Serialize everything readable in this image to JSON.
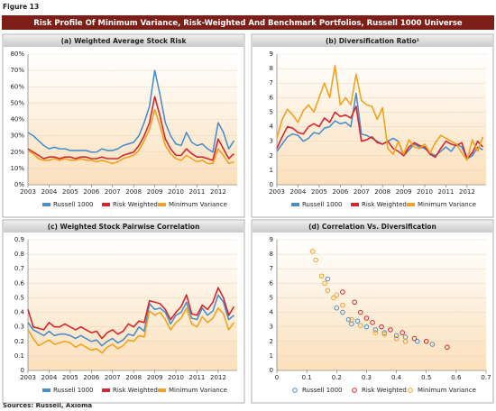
{
  "figure_label": "Figure 13",
  "title": "Risk Profile Of Minimum Variance, Risk-Weighted And Benchmark Portfolios, Russell 1000 Universe",
  "source": "Sources: Russell, Axioma",
  "chart_data": [
    {
      "type": "line",
      "title": "(a) Weighted Average Stock Risk",
      "legend": "bottom",
      "grid": true,
      "x": [
        2003,
        2003.25,
        2003.5,
        2003.75,
        2004,
        2004.25,
        2004.5,
        2004.75,
        2005,
        2005.25,
        2005.5,
        2005.75,
        2006,
        2006.25,
        2006.5,
        2006.75,
        2007,
        2007.25,
        2007.5,
        2007.75,
        2008,
        2008.25,
        2008.5,
        2008.75,
        2009,
        2009.25,
        2009.5,
        2009.75,
        2010,
        2010.25,
        2010.5,
        2010.75,
        2011,
        2011.25,
        2011.5,
        2011.75,
        2012,
        2012.25,
        2012.5,
        2012.75
      ],
      "xlim": [
        2003,
        2012.9
      ],
      "xticks": [
        2003,
        2004,
        2005,
        2006,
        2007,
        2008,
        2009,
        2010,
        2011,
        2012
      ],
      "ylim": [
        0,
        80
      ],
      "yticks": [
        {
          "value": 0,
          "label": "0%"
        },
        {
          "value": 10,
          "label": "10%"
        },
        {
          "value": 20,
          "label": "20%"
        },
        {
          "value": 30,
          "label": "30%"
        },
        {
          "value": 40,
          "label": "40%"
        },
        {
          "value": 50,
          "label": "50%"
        },
        {
          "value": 60,
          "label": "60%"
        },
        {
          "value": 70,
          "label": "70%"
        },
        {
          "value": 80,
          "label": "80%"
        }
      ],
      "series": [
        {
          "name": "Russell 1000",
          "color": "#4a8fcb",
          "values": [
            32,
            30,
            27,
            24,
            22,
            23,
            22,
            22,
            21,
            21,
            21,
            21,
            20,
            20,
            22,
            21,
            21,
            22,
            24,
            25,
            26,
            30,
            38,
            48,
            70,
            55,
            38,
            30,
            25,
            24,
            32,
            26,
            24,
            25,
            22,
            20,
            38,
            32,
            22,
            27
          ]
        },
        {
          "name": "Risk Weighted",
          "color": "#d7262c",
          "values": [
            22,
            20,
            18,
            16,
            17,
            17,
            16,
            17,
            17,
            16,
            17,
            17,
            16,
            16,
            17,
            16,
            16,
            16,
            18,
            19,
            20,
            24,
            30,
            38,
            54,
            42,
            28,
            22,
            18,
            18,
            22,
            19,
            17,
            17,
            16,
            15,
            28,
            22,
            16,
            19
          ]
        },
        {
          "name": "Minimum Variance",
          "color": "#f2a21e",
          "values": [
            21,
            19,
            16,
            15,
            15,
            16,
            15,
            16,
            15,
            15,
            16,
            15,
            15,
            14,
            15,
            14,
            13,
            14,
            16,
            17,
            18,
            21,
            27,
            34,
            46,
            36,
            24,
            19,
            16,
            15,
            18,
            16,
            14,
            15,
            13,
            13,
            22,
            18,
            13,
            14
          ]
        }
      ]
    },
    {
      "type": "line",
      "title": "(b) Diversification Ratio¹",
      "legend": "bottom",
      "grid": true,
      "x": [
        2003,
        2003.25,
        2003.5,
        2003.75,
        2004,
        2004.25,
        2004.5,
        2004.75,
        2005,
        2005.25,
        2005.5,
        2005.75,
        2006,
        2006.25,
        2006.5,
        2006.75,
        2007,
        2007.25,
        2007.5,
        2007.75,
        2008,
        2008.25,
        2008.5,
        2008.75,
        2009,
        2009.25,
        2009.5,
        2009.75,
        2010,
        2010.25,
        2010.5,
        2010.75,
        2011,
        2011.25,
        2011.5,
        2011.75,
        2012,
        2012.25,
        2012.5,
        2012.75
      ],
      "xlim": [
        2003,
        2012.9
      ],
      "xticks": [
        2003,
        2004,
        2005,
        2006,
        2007,
        2008,
        2009,
        2010,
        2011,
        2012
      ],
      "ylim": [
        0,
        9
      ],
      "yticks": [
        0,
        1,
        2,
        3,
        4,
        5,
        6,
        7,
        8,
        9
      ],
      "series": [
        {
          "name": "Russell 1000",
          "color": "#4a8fcb",
          "values": [
            2.3,
            2.8,
            3.3,
            3.5,
            3.4,
            3.0,
            3.2,
            3.6,
            3.5,
            3.9,
            4.0,
            4.4,
            4.2,
            4.3,
            4.0,
            6.3,
            3.5,
            3.4,
            3.2,
            3.0,
            2.8,
            3.0,
            3.2,
            3.0,
            2.0,
            2.4,
            2.8,
            2.6,
            2.5,
            2.2,
            2.0,
            2.3,
            2.6,
            2.3,
            2.8,
            2.6,
            1.8,
            2.0,
            2.6,
            2.4
          ]
        },
        {
          "name": "Risk Weighted",
          "color": "#d7262c",
          "values": [
            2.5,
            3.3,
            4.0,
            3.9,
            3.6,
            3.5,
            4.0,
            4.2,
            4.0,
            4.6,
            4.3,
            5.0,
            4.7,
            4.8,
            4.6,
            5.4,
            3.0,
            3.1,
            3.3,
            2.9,
            2.8,
            3.0,
            2.5,
            2.3,
            2.0,
            2.6,
            2.9,
            2.7,
            2.6,
            2.1,
            1.9,
            2.5,
            3.0,
            2.8,
            2.7,
            2.9,
            1.8,
            2.2,
            3.0,
            2.6
          ]
        },
        {
          "name": "Minimum Variance",
          "color": "#f2a21e",
          "values": [
            3.2,
            4.5,
            5.2,
            4.8,
            4.3,
            5.1,
            5.5,
            5.0,
            6.0,
            7.0,
            6.0,
            8.2,
            5.5,
            6.0,
            5.5,
            7.6,
            5.8,
            5.5,
            5.4,
            4.5,
            5.3,
            2.5,
            2.1,
            3.0,
            2.1,
            3.1,
            2.6,
            2.5,
            2.8,
            2.2,
            2.9,
            3.4,
            3.2,
            3.0,
            2.8,
            2.2,
            1.7,
            3.1,
            2.3,
            3.3
          ]
        }
      ]
    },
    {
      "type": "line",
      "title": "(c) Weighted Stock Pairwise Correlation",
      "legend": "bottom",
      "grid": true,
      "x": [
        2003,
        2003.25,
        2003.5,
        2003.75,
        2004,
        2004.25,
        2004.5,
        2004.75,
        2005,
        2005.25,
        2005.5,
        2005.75,
        2006,
        2006.25,
        2006.5,
        2006.75,
        2007,
        2007.25,
        2007.5,
        2007.75,
        2008,
        2008.25,
        2008.5,
        2008.75,
        2009,
        2009.25,
        2009.5,
        2009.75,
        2010,
        2010.25,
        2010.5,
        2010.75,
        2011,
        2011.25,
        2011.5,
        2011.75,
        2012,
        2012.25,
        2012.5,
        2012.75
      ],
      "xlim": [
        2003,
        2012.9
      ],
      "xticks": [
        2003,
        2004,
        2005,
        2006,
        2007,
        2008,
        2009,
        2010,
        2011,
        2012
      ],
      "ylim": [
        0,
        0.9
      ],
      "yticks": [
        0,
        0.1,
        0.2,
        0.3,
        0.4,
        0.5,
        0.6,
        0.7,
        0.8,
        0.9
      ],
      "series": [
        {
          "name": "Russell 1000",
          "color": "#4a8fcb",
          "values": [
            0.33,
            0.28,
            0.26,
            0.24,
            0.27,
            0.24,
            0.25,
            0.25,
            0.24,
            0.22,
            0.24,
            0.22,
            0.2,
            0.21,
            0.17,
            0.2,
            0.22,
            0.19,
            0.21,
            0.25,
            0.24,
            0.3,
            0.27,
            0.46,
            0.42,
            0.43,
            0.4,
            0.32,
            0.38,
            0.4,
            0.47,
            0.36,
            0.35,
            0.43,
            0.38,
            0.41,
            0.52,
            0.47,
            0.35,
            0.38
          ]
        },
        {
          "name": "Risk Weighted",
          "color": "#d7262c",
          "values": [
            0.42,
            0.3,
            0.29,
            0.28,
            0.33,
            0.3,
            0.3,
            0.32,
            0.3,
            0.28,
            0.3,
            0.28,
            0.26,
            0.27,
            0.22,
            0.26,
            0.28,
            0.25,
            0.27,
            0.32,
            0.3,
            0.34,
            0.33,
            0.48,
            0.47,
            0.46,
            0.42,
            0.35,
            0.4,
            0.44,
            0.52,
            0.39,
            0.38,
            0.45,
            0.42,
            0.47,
            0.57,
            0.5,
            0.38,
            0.44
          ]
        },
        {
          "name": "Minimum Variance",
          "color": "#f2a21e",
          "values": [
            0.28,
            0.22,
            0.17,
            0.19,
            0.21,
            0.18,
            0.19,
            0.2,
            0.19,
            0.16,
            0.18,
            0.16,
            0.14,
            0.15,
            0.12,
            0.16,
            0.18,
            0.15,
            0.17,
            0.21,
            0.2,
            0.24,
            0.23,
            0.41,
            0.38,
            0.4,
            0.35,
            0.28,
            0.33,
            0.36,
            0.43,
            0.32,
            0.3,
            0.37,
            0.33,
            0.36,
            0.43,
            0.39,
            0.28,
            0.33
          ]
        }
      ]
    },
    {
      "type": "scatter",
      "title": "(d) Correlation Vs. Diversification",
      "legend": "bottom",
      "grid": true,
      "xlim": [
        0,
        0.7
      ],
      "xticks": [
        0,
        0.1,
        0.2,
        0.3,
        0.4,
        0.5,
        0.6,
        0.7
      ],
      "ylim": [
        0,
        9
      ],
      "yticks": [
        0,
        1,
        2,
        3,
        4,
        5,
        6,
        7,
        8,
        9
      ],
      "series": [
        {
          "name": "Russell 1000",
          "color": "#4a8fcb",
          "x": [
            0.17,
            0.2,
            0.22,
            0.24,
            0.25,
            0.27,
            0.3,
            0.33,
            0.36,
            0.4,
            0.43,
            0.47,
            0.52
          ],
          "values": [
            6.3,
            4.3,
            4.0,
            3.5,
            3.2,
            3.4,
            3.0,
            2.8,
            2.6,
            2.4,
            2.3,
            2.0,
            1.8
          ]
        },
        {
          "name": "Risk Weighted",
          "color": "#d7262c",
          "x": [
            0.22,
            0.26,
            0.28,
            0.3,
            0.32,
            0.35,
            0.38,
            0.42,
            0.46,
            0.5,
            0.57
          ],
          "values": [
            5.4,
            4.7,
            4.0,
            3.6,
            3.3,
            3.0,
            2.8,
            2.6,
            2.2,
            2.0,
            1.6
          ]
        },
        {
          "name": "Minimum Variance",
          "color": "#f2a21e",
          "x": [
            0.12,
            0.13,
            0.15,
            0.16,
            0.17,
            0.19,
            0.2,
            0.22,
            0.25,
            0.28,
            0.33,
            0.36,
            0.4,
            0.43
          ],
          "values": [
            8.2,
            7.6,
            6.5,
            6.0,
            5.5,
            5.0,
            5.2,
            4.5,
            3.5,
            3.1,
            2.6,
            2.5,
            2.2,
            2.0
          ]
        }
      ]
    }
  ]
}
